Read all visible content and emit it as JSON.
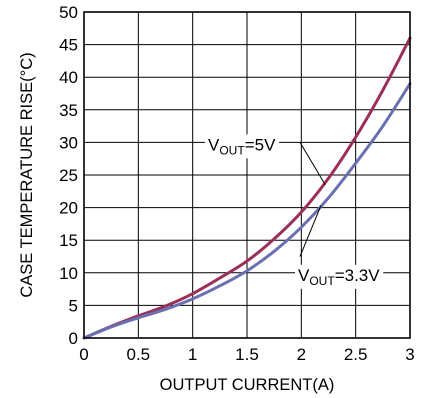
{
  "chart_data": {
    "type": "line",
    "title": "",
    "xlabel": "OUTPUT CURRENT(A)",
    "ylabel": "CASE TEMPERATURE RISE(°C)",
    "xlim": [
      0,
      3
    ],
    "ylim": [
      0,
      50
    ],
    "x_ticks": [
      0,
      0.5,
      1,
      1.5,
      2,
      2.5,
      3
    ],
    "x_tick_labels": [
      "0",
      "0.5",
      "1",
      "1.5",
      "2",
      "2.5",
      "3"
    ],
    "y_ticks": [
      0,
      5,
      10,
      15,
      20,
      25,
      30,
      35,
      40,
      45,
      50
    ],
    "y_tick_labels": [
      "0",
      "5",
      "10",
      "15",
      "20",
      "25",
      "30",
      "35",
      "40",
      "45",
      "50"
    ],
    "grid": true,
    "legend": "none",
    "series": [
      {
        "key": "vout5",
        "color": "#9b2f5a",
        "x": [
          0,
          0.25,
          0.5,
          0.75,
          1.0,
          1.25,
          1.5,
          1.75,
          2.0,
          2.25,
          2.5,
          2.75,
          3.0
        ],
        "y": [
          0,
          1.8,
          3.4,
          4.9,
          6.8,
          9.2,
          11.8,
          15.2,
          19.3,
          24.5,
          30.8,
          38.0,
          46.0
        ]
      },
      {
        "key": "vout33",
        "color": "#6a6fb0",
        "x": [
          0,
          0.25,
          0.5,
          0.75,
          1.0,
          1.25,
          1.5,
          1.75,
          2.0,
          2.25,
          2.5,
          2.75,
          3.0
        ],
        "y": [
          0,
          1.7,
          3.1,
          4.4,
          6.0,
          8.0,
          10.3,
          13.3,
          17.0,
          21.5,
          26.8,
          32.5,
          39.0
        ]
      }
    ],
    "annotations": [
      {
        "main": "V",
        "sub": "OUT",
        "tail": "=5V",
        "series": "vout5"
      },
      {
        "main": "V",
        "sub": "OUT",
        "tail": "=3.3V",
        "series": "vout33"
      }
    ]
  }
}
